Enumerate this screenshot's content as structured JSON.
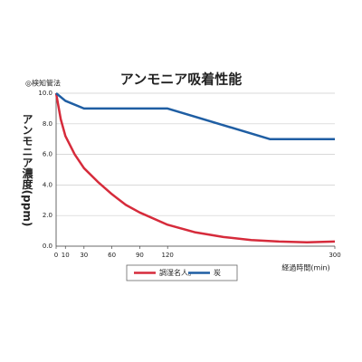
{
  "chart_data": {
    "type": "line",
    "title": "アンモニア吸着性能",
    "note": "◎検知管法",
    "y_label": "アンモニア濃度(ppm)",
    "x_label": "経過時間(min)",
    "xlim": [
      0,
      300
    ],
    "xticks": [
      0,
      10,
      30,
      60,
      90,
      120,
      300
    ],
    "ylim": [
      0,
      10
    ],
    "yticks": [
      {
        "value": 0,
        "label": "0.0"
      },
      {
        "value": 2,
        "label": "2.0"
      },
      {
        "value": 4,
        "label": "4.0"
      },
      {
        "value": 6,
        "label": "6.0"
      },
      {
        "value": 8,
        "label": "8.0"
      },
      {
        "value": 10,
        "label": "10.0"
      }
    ],
    "grid": true,
    "series": [
      {
        "name": "調湿名人。",
        "color": "#d62b3b",
        "x": [
          0,
          5,
          10,
          20,
          30,
          45,
          60,
          75,
          90,
          120,
          150,
          180,
          210,
          240,
          270,
          300
        ],
        "values": [
          10,
          8.3,
          7.2,
          6.0,
          5.1,
          4.2,
          3.4,
          2.7,
          2.2,
          1.4,
          0.9,
          0.6,
          0.4,
          0.3,
          0.25,
          0.3
        ]
      },
      {
        "name": "炭",
        "color": "#1f5ea3",
        "x": [
          0,
          10,
          30,
          120,
          230,
          300
        ],
        "values": [
          10,
          9.5,
          9.0,
          9.0,
          7.0,
          7.0
        ]
      }
    ]
  }
}
